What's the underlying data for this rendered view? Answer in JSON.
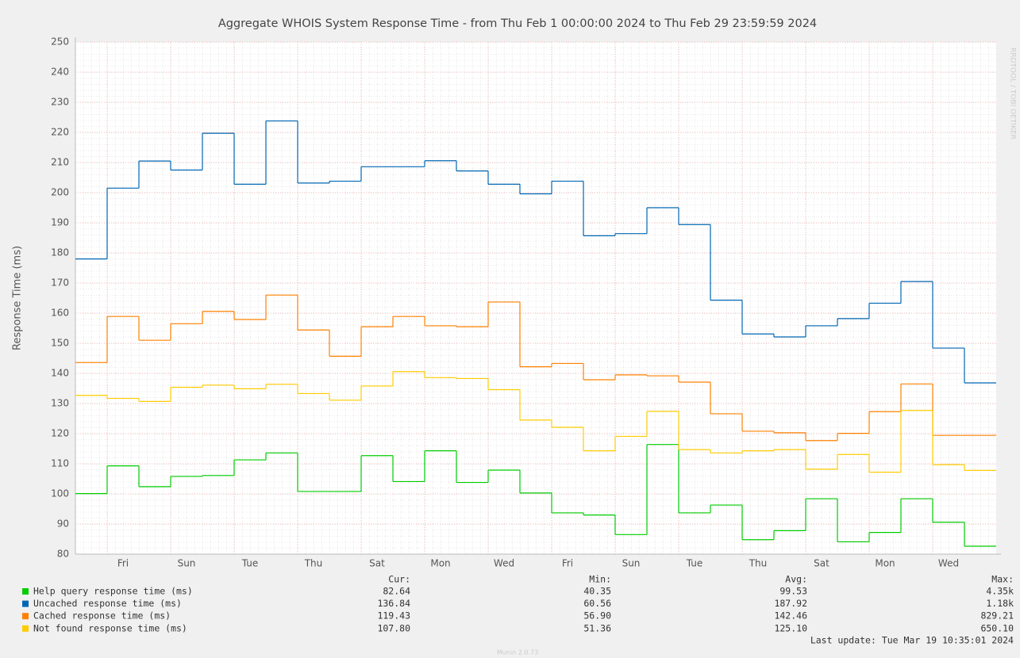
{
  "chart_data": {
    "type": "step",
    "title": "Aggregate WHOIS System Response Time - from Thu Feb  1 00:00:00 2024 to Thu Feb 29 23:59:59 2024",
    "y_label": "Response Time (ms)",
    "side_text": "RRDTOOL / TOBI OETIKER",
    "x": [
      0,
      1,
      2,
      3,
      4,
      5,
      6,
      7,
      8,
      9,
      10,
      11,
      12,
      13,
      14,
      15,
      16,
      17,
      18,
      19,
      20,
      21,
      22,
      23,
      24,
      25,
      26,
      27,
      28
    ],
    "xlim": [
      0,
      29
    ],
    "xticks": [
      {
        "value": 1,
        "label": "Fri"
      },
      {
        "value": 3,
        "label": "Sun"
      },
      {
        "value": 5,
        "label": "Tue"
      },
      {
        "value": 7,
        "label": "Thu"
      },
      {
        "value": 9,
        "label": "Sat"
      },
      {
        "value": 11,
        "label": "Mon"
      },
      {
        "value": 13,
        "label": "Wed"
      },
      {
        "value": 15,
        "label": "Fri"
      },
      {
        "value": 17,
        "label": "Sun"
      },
      {
        "value": 19,
        "label": "Tue"
      },
      {
        "value": 21,
        "label": "Thu"
      },
      {
        "value": 23,
        "label": "Sat"
      },
      {
        "value": 25,
        "label": "Mon"
      },
      {
        "value": 27,
        "label": "Wed"
      }
    ],
    "ylim": [
      80,
      250
    ],
    "yticks": [
      80,
      90,
      100,
      110,
      120,
      130,
      140,
      150,
      160,
      170,
      180,
      190,
      200,
      210,
      220,
      230,
      240,
      250
    ],
    "grid": true,
    "series": [
      {
        "name": "Help query response time (ms)",
        "color": "#00cc00",
        "values": [
          100.1,
          109.3,
          102.4,
          105.8,
          106.1,
          111.3,
          113.6,
          100.8,
          100.8,
          112.7,
          104.1,
          114.3,
          103.8,
          107.9,
          100.3,
          93.7,
          93,
          86.5,
          116.4,
          93.7,
          96.3,
          84.8,
          87.8,
          98.4,
          84.1,
          87.2,
          98.4,
          90.6,
          82.64
        ]
      },
      {
        "name": "Uncached response time (ms)",
        "color": "#0066b3",
        "values": [
          178,
          201.5,
          210.5,
          207.5,
          219.7,
          202.8,
          223.8,
          203.2,
          203.8,
          208.6,
          208.6,
          210.6,
          207.2,
          202.8,
          199.6,
          203.8,
          185.7,
          186.4,
          195,
          189.4,
          164.3,
          153.1,
          152.1,
          155.8,
          158.2,
          163.3,
          170.5,
          148.4,
          136.84
        ]
      },
      {
        "name": "Cached response time (ms)",
        "color": "#ff8000",
        "values": [
          143.6,
          158.9,
          151,
          156.5,
          160.6,
          157.9,
          166,
          154.4,
          145.7,
          155.5,
          158.9,
          155.8,
          155.5,
          163.7,
          142.2,
          143.3,
          137.9,
          139.5,
          139.2,
          137.1,
          126.6,
          120.8,
          120.3,
          117.7,
          120.1,
          127.3,
          136.5,
          119.43,
          119.43
        ]
      },
      {
        "name": "Not found response time (ms)",
        "color": "#ffcc00",
        "values": [
          132.7,
          131.7,
          130.7,
          135.4,
          136.1,
          134.9,
          136.4,
          133.3,
          131.1,
          135.8,
          140.6,
          138.6,
          138.3,
          134.6,
          124.5,
          122.1,
          114.3,
          119.1,
          127.4,
          114.7,
          113.6,
          114.3,
          114.7,
          108.2,
          113.1,
          107.2,
          127.7,
          109.7,
          107.8
        ]
      }
    ],
    "summary": {
      "columns": [
        "Cur:",
        "Min:",
        "Avg:",
        "Max:"
      ],
      "rows": [
        [
          "82.64",
          "40.35",
          "99.53",
          "4.35k"
        ],
        [
          "136.84",
          "60.56",
          "187.92",
          "1.18k"
        ],
        [
          "119.43",
          "56.90",
          "142.46",
          "829.21"
        ],
        [
          "107.80",
          "51.36",
          "125.10",
          "650.10"
        ]
      ]
    },
    "last_update": "Last update: Tue Mar 19 10:35:01 2024",
    "footer": "Munin 2.0.73"
  }
}
